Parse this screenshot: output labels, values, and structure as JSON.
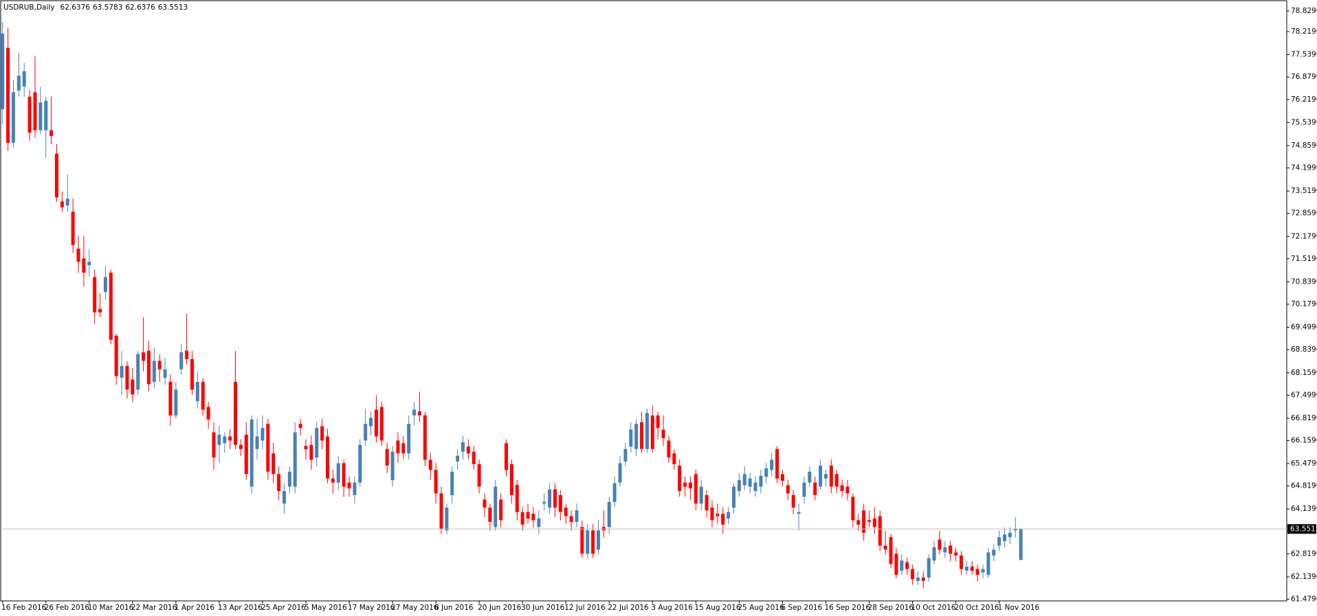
{
  "chart_data": {
    "type": "candlestick",
    "title": "USDRUB,Daily",
    "up_color": "#4682b4",
    "down_color": "#ff0000",
    "price_line_color": "#c0c0c0",
    "categories": [
      "16 Feb 2016",
      null,
      null,
      null,
      null,
      null,
      null,
      null,
      "26 Feb 2016",
      null,
      null,
      null,
      null,
      null,
      null,
      null,
      "10 Mar 2016",
      null,
      null,
      null,
      null,
      null,
      null,
      null,
      "22 Mar 2016",
      null,
      null,
      null,
      null,
      null,
      null,
      null,
      "1 Apr 2016",
      null,
      null,
      null,
      null,
      null,
      null,
      null,
      "13 Apr 2016",
      null,
      null,
      null,
      null,
      null,
      null,
      null,
      "25 Apr 2016",
      null,
      null,
      null,
      null,
      null,
      null,
      null,
      "5 May 2016",
      null,
      null,
      null,
      null,
      null,
      null,
      null,
      "17 May 2016",
      null,
      null,
      null,
      null,
      null,
      null,
      null,
      "27 May 2016",
      null,
      null,
      null,
      null,
      null,
      null,
      null,
      "8 Jun 2016",
      null,
      null,
      null,
      null,
      null,
      null,
      null,
      "20 Jun 2016",
      null,
      null,
      null,
      null,
      null,
      null,
      null,
      "30 Jun 2016",
      null,
      null,
      null,
      null,
      null,
      null,
      null,
      "12 Jul 2016",
      null,
      null,
      null,
      null,
      null,
      null,
      null,
      "22 Jul 2016",
      null,
      null,
      null,
      null,
      null,
      null,
      null,
      "3 Aug 2016",
      null,
      null,
      null,
      null,
      null,
      null,
      null,
      "15 Aug 2016",
      null,
      null,
      null,
      null,
      null,
      null,
      null,
      "25 Aug 2016",
      null,
      null,
      null,
      null,
      null,
      null,
      null,
      "6 Sep 2016",
      null,
      null,
      null,
      null,
      null,
      null,
      null,
      "16 Sep 2016",
      null,
      null,
      null,
      null,
      null,
      null,
      null,
      "28 Sep 2016",
      null,
      null,
      null,
      null,
      null,
      null,
      null,
      "10 Oct 2016",
      null,
      null,
      null,
      null,
      null,
      null,
      null,
      "20 Oct 2016",
      null,
      null,
      null,
      null,
      null,
      null,
      null,
      "1 Nov 2016",
      null,
      null,
      null,
      null
    ],
    "open": [
      75.93,
      77.74,
      74.94,
      76.48,
      76.6,
      76.3,
      76.43,
      75.31,
      75.31,
      75.31,
      74.62,
      73.21,
      73.09,
      72.91,
      71.82,
      71.53,
      71.33,
      70.98,
      70.04,
      70.54,
      71.11,
      69.25,
      68.01,
      68.36,
      67.96,
      67.66,
      68.76,
      68.81,
      67.89,
      68.51,
      68.01,
      67.89,
      66.9,
      68.26,
      68.81,
      68.56,
      67.32,
      67.89,
      67.15,
      66.4,
      66.03,
      66.08,
      66.28,
      67.89,
      66.03,
      66.33,
      64.8,
      65.91,
      66.16,
      66.65,
      65.78,
      65.17,
      64.3,
      64.8,
      64.8,
      66.65,
      66.0,
      66.03,
      65.66,
      66.58,
      66.28,
      65.04,
      64.92,
      65.49,
      64.92,
      64.55,
      64.92,
      66.16,
      66.58,
      67.07,
      67.15,
      65.91,
      64.99,
      66.16,
      66.08,
      65.78,
      66.9,
      67.02,
      66.9,
      65.59,
      65.29,
      64.6,
      63.51,
      64.55,
      65.54,
      65.83,
      65.98,
      65.83,
      65.46,
      64.42,
      64.18,
      63.61,
      64.42,
      66.08,
      65.46,
      64.85,
      64.05,
      64.05,
      64.0,
      63.61,
      64.3,
      64.18,
      64.72,
      64.55,
      64.18,
      63.93,
      63.76,
      63.61,
      62.82,
      63.51,
      62.94,
      63.61,
      63.61,
      64.35,
      64.92,
      65.54,
      65.98,
      65.91,
      66.7,
      65.91,
      66.9,
      66.9,
      66.48,
      66.16,
      65.78,
      65.42,
      64.92,
      64.92,
      65.17,
      64.3,
      64.55,
      64.18,
      64.0,
      64.0,
      63.86,
      64.18,
      64.67,
      64.84,
      64.8,
      64.67,
      64.8,
      65.09,
      65.29,
      65.91,
      65.17,
      64.84,
      64.55,
      64.0,
      64.5,
      64.92,
      64.92,
      64.8,
      65.04,
      65.42,
      65.17,
      64.84,
      64.8,
      64.5,
      63.81,
      64.1,
      63.81,
      63.86,
      63.93,
      63.06,
      63.31,
      62.82,
      62.32,
      62.57,
      62.37,
      62.02,
      62.12,
      62.12,
      62.62,
      63.24,
      62.86,
      63.06,
      62.86,
      62.77,
      62.32,
      62.44,
      62.37,
      62.27,
      62.2,
      62.77,
      63.06,
      63.19,
      63.31,
      63.51,
      62.6376
    ],
    "high": [
      78.5,
      78.33,
      76.8,
      77.6,
      77.3,
      76.5,
      77.5,
      76.6,
      76.3,
      76.3,
      74.9,
      73.5,
      74.0,
      73.3,
      72.2,
      72.2,
      71.8,
      71.2,
      70.5,
      71.3,
      71.2,
      69.3,
      68.8,
      68.5,
      68.3,
      68.8,
      69.8,
      69.1,
      68.9,
      68.7,
      68.6,
      68.1,
      67.9,
      69.0,
      69.9,
      68.8,
      68.2,
      68.0,
      67.3,
      66.7,
      66.6,
      66.4,
      66.5,
      68.8,
      66.2,
      66.7,
      66.9,
      66.8,
      66.9,
      66.8,
      66.1,
      65.4,
      64.9,
      65.4,
      66.7,
      66.8,
      66.2,
      66.3,
      66.7,
      66.8,
      66.5,
      65.3,
      65.7,
      65.6,
      65.1,
      65.1,
      66.2,
      67.1,
      67.0,
      67.5,
      67.3,
      66.1,
      66.0,
      66.4,
      66.3,
      66.9,
      67.3,
      67.6,
      67.0,
      65.8,
      65.5,
      64.8,
      64.3,
      65.4,
      65.9,
      66.3,
      66.2,
      66.0,
      65.6,
      64.6,
      64.3,
      65.0,
      64.6,
      66.2,
      65.6,
      65.0,
      64.2,
      64.3,
      64.2,
      64.1,
      64.6,
      64.9,
      64.9,
      64.7,
      64.3,
      64.1,
      64.3,
      63.8,
      63.7,
      63.7,
      63.8,
      64.1,
      64.5,
      65.1,
      65.7,
      66.1,
      66.7,
      66.8,
      67.0,
      67.1,
      67.2,
      67.0,
      66.9,
      66.3,
      65.9,
      65.6,
      65.1,
      65.1,
      65.3,
      65.0,
      64.7,
      64.4,
      64.3,
      64.2,
      64.2,
      64.9,
      65.2,
      65.4,
      65.2,
      65.1,
      65.3,
      65.5,
      65.8,
      66.0,
      65.3,
      65.0,
      64.7,
      64.3,
      65.1,
      65.4,
      65.1,
      65.6,
      65.3,
      65.6,
      65.3,
      65.0,
      65.0,
      64.6,
      64.0,
      64.3,
      64.1,
      64.2,
      64.1,
      63.5,
      63.4,
      63.0,
      62.8,
      62.7,
      62.5,
      62.3,
      62.3,
      62.8,
      63.2,
      63.5,
      63.2,
      63.2,
      63.0,
      62.9,
      62.6,
      62.6,
      62.5,
      62.5,
      63.0,
      63.1,
      63.5,
      63.6,
      63.6,
      63.9,
      63.5783
    ],
    "low": [
      75.5,
      74.7,
      74.8,
      76.3,
      76.3,
      75.0,
      75.1,
      75.2,
      74.5,
      74.9,
      73.2,
      72.9,
      72.9,
      71.7,
      71.1,
      70.7,
      71.0,
      69.6,
      69.8,
      70.3,
      69.0,
      67.8,
      67.5,
      67.4,
      67.3,
      67.5,
      68.2,
      67.6,
      67.7,
      67.9,
      67.8,
      66.6,
      66.8,
      68.1,
      68.4,
      67.5,
      67.1,
      66.9,
      66.5,
      65.3,
      65.5,
      65.8,
      65.9,
      65.9,
      65.7,
      65.0,
      64.6,
      65.6,
      65.9,
      65.0,
      64.9,
      64.4,
      64.0,
      64.6,
      64.6,
      66.3,
      65.6,
      65.3,
      65.4,
      65.9,
      64.9,
      64.6,
      64.7,
      64.5,
      64.5,
      64.3,
      64.8,
      66.0,
      66.3,
      66.1,
      66.0,
      65.2,
      64.8,
      65.5,
      65.6,
      65.6,
      66.6,
      66.7,
      65.4,
      65.0,
      64.3,
      63.4,
      63.4,
      64.3,
      65.3,
      65.6,
      65.6,
      65.3,
      64.6,
      63.9,
      63.5,
      63.5,
      63.6,
      65.1,
      64.3,
      63.8,
      63.5,
      63.7,
      63.6,
      63.4,
      64.1,
      64.0,
      63.9,
      63.8,
      63.7,
      63.5,
      63.6,
      62.7,
      62.7,
      62.7,
      62.8,
      63.3,
      63.4,
      64.2,
      64.8,
      65.4,
      65.8,
      65.7,
      65.8,
      65.8,
      65.8,
      66.2,
      66.0,
      65.5,
      65.3,
      64.5,
      64.5,
      64.4,
      64.1,
      64.1,
      63.9,
      63.6,
      63.7,
      63.4,
      63.7,
      64.0,
      64.5,
      64.7,
      64.6,
      64.5,
      64.6,
      64.9,
      65.1,
      64.9,
      64.8,
      64.4,
      64.0,
      63.5,
      64.3,
      64.8,
      64.4,
      64.7,
      64.8,
      64.6,
      64.6,
      64.5,
      64.4,
      63.6,
      63.5,
      63.2,
      63.6,
      63.4,
      62.9,
      62.8,
      62.4,
      62.1,
      62.2,
      62.2,
      61.9,
      61.9,
      61.8,
      62.0,
      62.5,
      62.8,
      62.7,
      62.6,
      62.6,
      62.2,
      62.2,
      62.2,
      62.0,
      62.1,
      62.1,
      62.6,
      62.9,
      63.0,
      63.1,
      63.3,
      62.6376
    ],
    "close": [
      78.16,
      74.94,
      76.43,
      76.92,
      77.05,
      75.24,
      75.31,
      76.13,
      76.18,
      75.14,
      73.33,
      73.04,
      73.29,
      71.92,
      71.43,
      71.11,
      71.43,
      69.94,
      69.94,
      70.98,
      69.13,
      68.06,
      68.36,
      67.66,
      67.52,
      68.71,
      68.51,
      67.82,
      68.51,
      68.26,
      68.26,
      66.9,
      67.66,
      68.76,
      68.56,
      67.66,
      67.89,
      67.07,
      66.78,
      65.66,
      66.33,
      66.28,
      66.16,
      66.03,
      65.91,
      65.17,
      66.78,
      66.28,
      66.53,
      65.24,
      65.17,
      64.67,
      64.67,
      65.24,
      66.4,
      66.53,
      65.9,
      65.59,
      66.53,
      66.16,
      65.04,
      64.92,
      65.49,
      64.8,
      64.75,
      64.92,
      66.03,
      66.65,
      66.83,
      66.28,
      66.16,
      65.42,
      65.83,
      65.78,
      65.78,
      66.65,
      67.07,
      66.9,
      65.59,
      65.29,
      64.6,
      63.56,
      64.18,
      65.24,
      65.71,
      66.11,
      65.78,
      65.46,
      64.8,
      64.18,
      63.76,
      64.8,
      63.81,
      65.29,
      64.55,
      64.05,
      63.68,
      63.86,
      63.81,
      63.86,
      64.35,
      64.72,
      64.18,
      64.05,
      63.93,
      63.76,
      64.1,
      62.82,
      63.51,
      62.82,
      63.51,
      63.51,
      64.35,
      64.9,
      65.49,
      65.91,
      66.48,
      66.65,
      65.91,
      66.97,
      65.91,
      66.53,
      66.23,
      65.66,
      65.46,
      64.67,
      64.8,
      64.75,
      64.3,
      64.8,
      64.1,
      63.81,
      63.93,
      63.68,
      64.05,
      64.8,
      64.99,
      65.17,
      65.04,
      64.92,
      65.12,
      65.34,
      65.59,
      65.04,
      64.97,
      64.6,
      64.18,
      64.05,
      64.92,
      65.24,
      64.55,
      65.42,
      65.17,
      64.8,
      64.8,
      64.67,
      64.6,
      63.81,
      63.68,
      63.44,
      63.76,
      63.61,
      63.06,
      62.94,
      62.52,
      62.2,
      62.62,
      62.37,
      62.07,
      62.12,
      62.02,
      62.69,
      63.01,
      62.94,
      63.01,
      62.82,
      62.77,
      62.37,
      62.44,
      62.32,
      62.2,
      62.37,
      62.86,
      62.94,
      63.31,
      63.39,
      63.44,
      63.56,
      63.5513
    ],
    "ylim": [
      61.43,
      79.05
    ],
    "yticks": [
      {
        "value": 78.829,
        "label": "78.8290"
      },
      {
        "value": 78.219,
        "label": "78.2190"
      },
      {
        "value": 77.539,
        "label": "77.5390"
      },
      {
        "value": 76.879,
        "label": "76.8790"
      },
      {
        "value": 76.219,
        "label": "76.2190"
      },
      {
        "value": 75.539,
        "label": "75.5390"
      },
      {
        "value": 74.859,
        "label": "74.8590"
      },
      {
        "value": 74.199,
        "label": "74.1990"
      },
      {
        "value": 73.519,
        "label": "73.5190"
      },
      {
        "value": 72.859,
        "label": "72.8590"
      },
      {
        "value": 72.179,
        "label": "72.1790"
      },
      {
        "value": 71.519,
        "label": "71.5190"
      },
      {
        "value": 70.839,
        "label": "70.8390"
      },
      {
        "value": 70.179,
        "label": "70.1790"
      },
      {
        "value": 69.499,
        "label": "69.4990"
      },
      {
        "value": 68.839,
        "label": "68.8390"
      },
      {
        "value": 68.159,
        "label": "68.1590"
      },
      {
        "value": 67.499,
        "label": "67.4990"
      },
      {
        "value": 66.819,
        "label": "66.8190"
      },
      {
        "value": 66.159,
        "label": "66.1590"
      },
      {
        "value": 65.479,
        "label": "65.4790"
      },
      {
        "value": 64.819,
        "label": "64.8190"
      },
      {
        "value": 64.139,
        "label": "64.1390"
      },
      {
        "value": 62.819,
        "label": "62.8190"
      },
      {
        "value": 62.139,
        "label": "62.1390"
      },
      {
        "value": 61.479,
        "label": "61.4790"
      }
    ]
  }
}
